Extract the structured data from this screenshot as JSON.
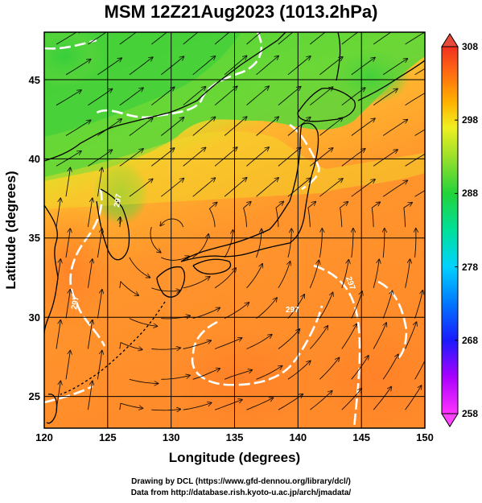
{
  "title": "MSM 12Z21Aug2023 (1013.2hPa)",
  "x_axis": {
    "label": "Longitude (degrees)",
    "range": [
      120,
      150
    ],
    "ticks": [
      "120",
      "125",
      "130",
      "135",
      "140",
      "145",
      "150"
    ]
  },
  "y_axis": {
    "label": "Latitude  (degrees)",
    "range": [
      22.5,
      47.5
    ],
    "ticks": [
      "25",
      "30",
      "35",
      "40",
      "45"
    ]
  },
  "colorbar": {
    "min": 258,
    "max": 308,
    "ticks": [
      "258",
      "268",
      "278",
      "288",
      "298",
      "308"
    ]
  },
  "contour_labels": [
    "297",
    "297",
    "297",
    "297"
  ],
  "credits": {
    "line1": "Drawing by DCL (https://www.gfd-dennou.org/library/dcl/)",
    "line2": "Data from http://database.rish.kyoto-u.ac.jp/arch/jmadata/"
  },
  "colors": {
    "warm": "#ff8a2a",
    "mid": "#e2e229",
    "cool": "#52d63a",
    "contour": "#ffffff",
    "coast": "#000000"
  }
}
